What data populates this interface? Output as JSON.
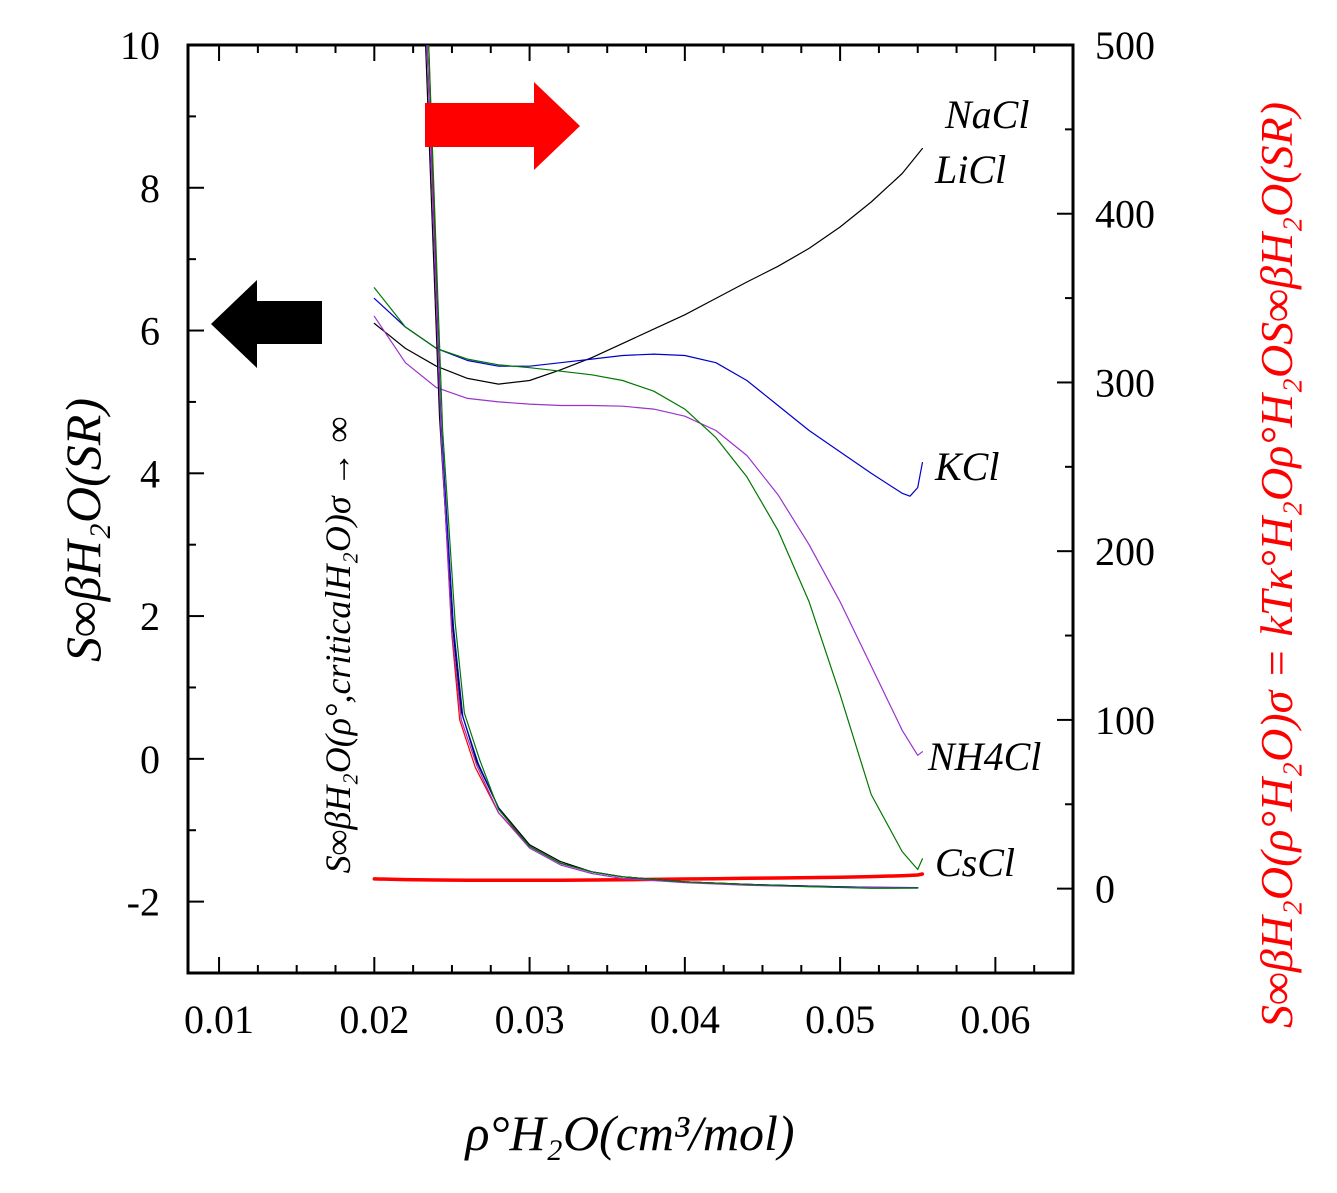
{
  "chart_data": {
    "type": "line",
    "x_axis": {
      "label": "ρ°H₂O(cm³/mol)",
      "range": [
        0.008,
        0.065
      ],
      "ticks": [
        0.01,
        0.02,
        0.03,
        0.04,
        0.05,
        0.06
      ],
      "tick_labels": [
        "0.01",
        "0.02",
        "0.03",
        "0.04",
        "0.05",
        "0.06"
      ]
    },
    "y_left": {
      "label": "S∞βH₂O(SR)",
      "range": [
        -3,
        10
      ],
      "ticks": [
        -2,
        0,
        2,
        4,
        6,
        8,
        10
      ],
      "tick_labels": [
        "-2",
        "0",
        "2",
        "4",
        "6",
        "8",
        "10"
      ]
    },
    "y_right": {
      "label": "S∞βH₂O(ρ°H₂O)σ = kTκ°H₂Oρ°H₂OS∞βH₂O(SR)",
      "range": [
        -50,
        500
      ],
      "ticks": [
        0,
        100,
        200,
        300,
        400,
        500
      ],
      "tick_labels": [
        "0",
        "100",
        "200",
        "300",
        "400",
        "500"
      ],
      "color": "#ff0000"
    },
    "inner_annotation": "S∞βH₂O(ρ°,criticalH₂O)σ → ∞",
    "arrows": [
      {
        "direction": "right",
        "meaning": "red curves use right axis",
        "color": "#ff0000"
      },
      {
        "direction": "left",
        "meaning": "thin curves use left axis",
        "color": "#000000"
      }
    ],
    "series_labels": [
      "NaCl",
      "LiCl",
      "KCl",
      "NH4Cl",
      "CsCl"
    ],
    "series": [
      {
        "name": "NaCl",
        "axis": "right",
        "color": "#ff0000",
        "width": 3.5,
        "x": [
          0.02,
          0.022,
          0.024,
          0.026,
          0.028,
          0.03,
          0.032,
          0.034,
          0.036,
          0.038,
          0.04,
          0.042,
          0.044,
          0.046,
          0.048,
          0.05,
          0.052,
          0.054,
          0.055,
          0.0553
        ],
        "y": [
          5.8,
          5.35,
          5.1,
          4.98,
          4.92,
          4.92,
          5.0,
          5.12,
          5.3,
          5.5,
          5.7,
          5.9,
          6.12,
          6.33,
          6.55,
          6.8,
          7.12,
          7.65,
          8.1,
          8.7
        ]
      },
      {
        "name": "LiCl",
        "axis": "left",
        "color": "#000000",
        "width": 1.2,
        "x": [
          0.02,
          0.022,
          0.024,
          0.026,
          0.028,
          0.03,
          0.032,
          0.034,
          0.036,
          0.038,
          0.04,
          0.042,
          0.044,
          0.046,
          0.048,
          0.05,
          0.052,
          0.054,
          0.0553
        ],
        "y": [
          6.1,
          5.75,
          5.5,
          5.33,
          5.25,
          5.3,
          5.45,
          5.62,
          5.82,
          6.02,
          6.22,
          6.45,
          6.68,
          6.9,
          7.15,
          7.45,
          7.8,
          8.2,
          8.55
        ]
      },
      {
        "name": "KCl",
        "axis": "left",
        "color": "#0000cc",
        "width": 1.2,
        "x": [
          0.02,
          0.022,
          0.024,
          0.026,
          0.028,
          0.03,
          0.032,
          0.034,
          0.036,
          0.038,
          0.04,
          0.042,
          0.044,
          0.046,
          0.048,
          0.05,
          0.052,
          0.054,
          0.0545,
          0.055,
          0.0553
        ],
        "y": [
          6.45,
          6.05,
          5.75,
          5.58,
          5.5,
          5.5,
          5.55,
          5.6,
          5.65,
          5.67,
          5.65,
          5.55,
          5.3,
          4.95,
          4.6,
          4.3,
          4.0,
          3.72,
          3.68,
          3.8,
          4.15
        ]
      },
      {
        "name": "NH4Cl",
        "axis": "left",
        "color": "#9933cc",
        "width": 1.2,
        "x": [
          0.02,
          0.022,
          0.024,
          0.026,
          0.028,
          0.03,
          0.032,
          0.034,
          0.036,
          0.038,
          0.04,
          0.042,
          0.044,
          0.046,
          0.048,
          0.05,
          0.052,
          0.054,
          0.055,
          0.0553
        ],
        "y": [
          6.2,
          5.55,
          5.2,
          5.05,
          5.0,
          4.97,
          4.95,
          4.95,
          4.94,
          4.9,
          4.8,
          4.6,
          4.25,
          3.7,
          3.0,
          2.2,
          1.3,
          0.4,
          0.05,
          0.1
        ]
      },
      {
        "name": "CsCl",
        "axis": "left",
        "color": "#007700",
        "width": 1.2,
        "x": [
          0.02,
          0.022,
          0.024,
          0.026,
          0.028,
          0.03,
          0.032,
          0.034,
          0.036,
          0.038,
          0.04,
          0.042,
          0.044,
          0.046,
          0.048,
          0.05,
          0.052,
          0.054,
          0.055,
          0.0553
        ],
        "y": [
          6.6,
          6.05,
          5.75,
          5.6,
          5.52,
          5.48,
          5.43,
          5.38,
          5.3,
          5.15,
          4.9,
          4.5,
          3.95,
          3.2,
          2.2,
          0.9,
          -0.5,
          -1.3,
          -1.55,
          -1.4
        ]
      },
      {
        "name": "NaCl divergence",
        "axis": "right",
        "color": "#ff0000",
        "width": 1.2,
        "x": [
          0.0235,
          0.0243,
          0.025,
          0.0255,
          0.0265,
          0.028,
          0.03,
          0.032,
          0.034,
          0.036,
          0.04,
          0.044,
          0.048,
          0.05,
          0.052,
          0.055
        ],
        "y": [
          500,
          270,
          150,
          100,
          72,
          45,
          25,
          15,
          10,
          7,
          4,
          2.5,
          1.5,
          0.8,
          0.5,
          0.5
        ]
      },
      {
        "name": "LiCl divergence",
        "axis": "right",
        "color": "#000000",
        "width": 1.2,
        "x": [
          0.0233,
          0.0242,
          0.025,
          0.0256,
          0.0266,
          0.028,
          0.03,
          0.032,
          0.034,
          0.036,
          0.04,
          0.044,
          0.048,
          0.052,
          0.055
        ],
        "y": [
          500,
          280,
          160,
          105,
          75,
          48,
          26,
          16,
          10,
          7,
          4,
          2.5,
          1.5,
          0.8,
          0.6
        ]
      },
      {
        "name": "KCl divergence",
        "axis": "right",
        "color": "#0000cc",
        "width": 1.2,
        "x": [
          0.0234,
          0.0243,
          0.0251,
          0.0257,
          0.0267,
          0.0281,
          0.03,
          0.032,
          0.034,
          0.036,
          0.04,
          0.044,
          0.048,
          0.052,
          0.055
        ],
        "y": [
          500,
          275,
          155,
          102,
          74,
          46,
          25,
          15,
          10,
          7,
          4,
          2.5,
          1.5,
          0.8,
          0.6
        ]
      },
      {
        "name": "NH4Cl divergence",
        "axis": "right",
        "color": "#9933cc",
        "width": 1.2,
        "x": [
          0.0234,
          0.0243,
          0.025,
          0.0256,
          0.0266,
          0.028,
          0.03,
          0.032,
          0.034,
          0.036,
          0.04,
          0.044,
          0.048,
          0.052,
          0.055
        ],
        "y": [
          500,
          270,
          152,
          100,
          73,
          45,
          24,
          14,
          9,
          6,
          3.5,
          2,
          1.2,
          0.6,
          0.5
        ]
      },
      {
        "name": "CsCl divergence",
        "axis": "right",
        "color": "#007700",
        "width": 1.2,
        "x": [
          0.0235,
          0.0244,
          0.0252,
          0.0258,
          0.0268,
          0.028,
          0.03,
          0.032,
          0.034,
          0.036,
          0.04,
          0.044,
          0.048,
          0.052,
          0.055
        ],
        "y": [
          500,
          272,
          158,
          104,
          76,
          47,
          25,
          15,
          10,
          7,
          4,
          2.5,
          1.2,
          0.2,
          0.3
        ]
      }
    ]
  }
}
